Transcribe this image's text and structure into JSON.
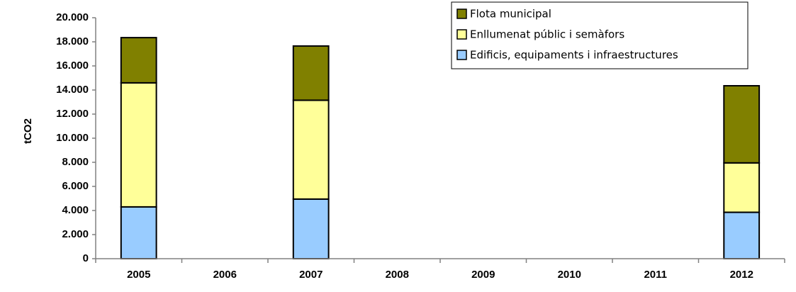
{
  "chart_data": {
    "type": "bar",
    "stacked": true,
    "categories": [
      "2005",
      "2006",
      "2007",
      "2008",
      "2009",
      "2010",
      "2011",
      "2012"
    ],
    "series": [
      {
        "name": "Edificis, equipaments i infraestructures",
        "color": "#99ccff",
        "values": [
          4300,
          null,
          4950,
          null,
          null,
          null,
          null,
          3850
        ]
      },
      {
        "name": "Enllumenat públic i semàfors",
        "color": "#ffff99",
        "values": [
          10300,
          null,
          8200,
          null,
          null,
          null,
          null,
          4100
        ]
      },
      {
        "name": "Flota municipal",
        "color": "#808000",
        "values": [
          3750,
          null,
          4500,
          null,
          null,
          null,
          null,
          6400
        ]
      }
    ],
    "title": "",
    "xlabel": "",
    "ylabel": "tCO2",
    "ylim": [
      0,
      20000
    ],
    "ytick_labels": [
      "0",
      "2.000",
      "4.000",
      "6.000",
      "8.000",
      "10.000",
      "12.000",
      "14.000",
      "16.000",
      "18.000",
      "20.000"
    ],
    "grid": false,
    "legend_position": "top-right"
  }
}
